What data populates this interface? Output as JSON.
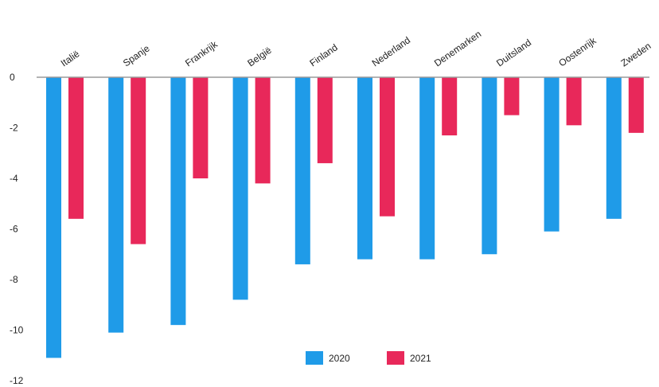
{
  "chart_data": {
    "type": "bar",
    "title": "",
    "xlabel": "",
    "ylabel": "",
    "categories": [
      "Italië",
      "Spanje",
      "Frankrijk",
      "België",
      "Finland",
      "Nederland",
      "Denemarken",
      "Duitsland",
      "Oostenrijk",
      "Zweden"
    ],
    "series": [
      {
        "name": "2020",
        "color": "#1f9be8",
        "values": [
          -11.1,
          -10.1,
          -9.8,
          -8.8,
          -7.4,
          -7.2,
          -7.2,
          -7.0,
          -6.1,
          -5.6
        ]
      },
      {
        "name": "2021",
        "color": "#e8285a",
        "values": [
          -5.6,
          -6.6,
          -4.0,
          -4.2,
          -3.4,
          -5.5,
          -2.3,
          -1.5,
          -1.9,
          -2.2
        ]
      }
    ],
    "ylim": [
      -12,
      0
    ],
    "yticks": [
      0,
      -2,
      -4,
      -6,
      -8,
      -10,
      -12
    ],
    "grid": false,
    "legend_position": "bottom-center",
    "category_label_position": "top-rotated"
  }
}
